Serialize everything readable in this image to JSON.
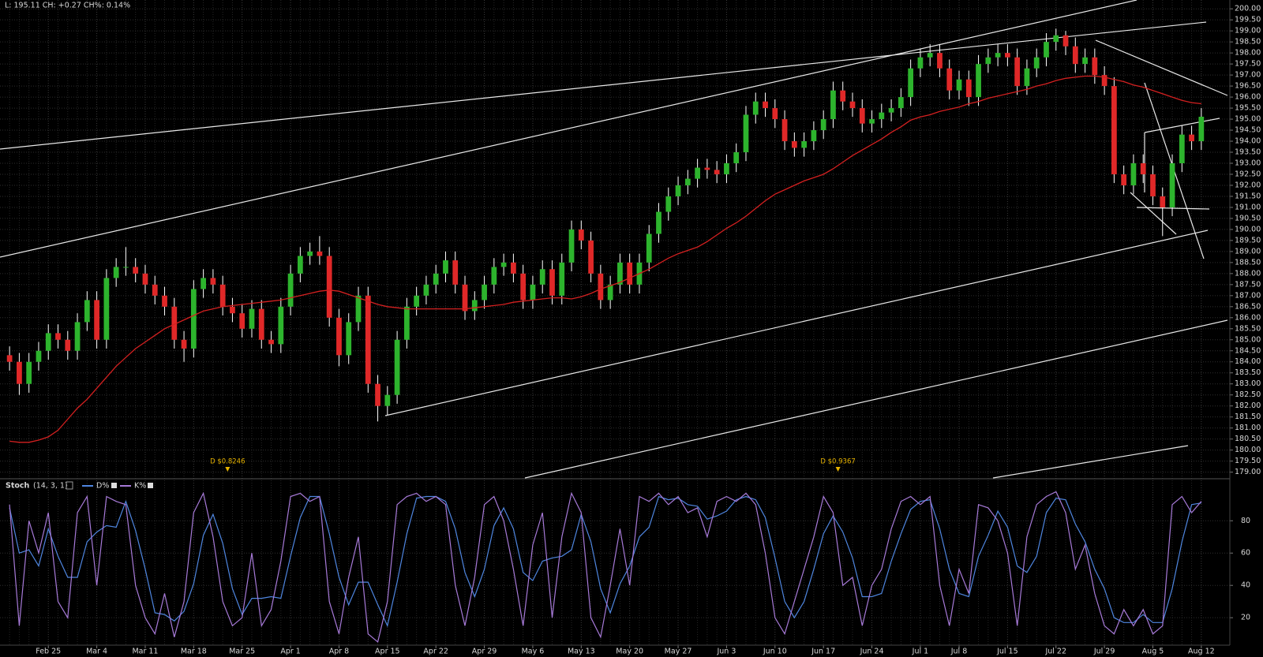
{
  "chart_data": [
    {
      "type": "candlestick",
      "status": "L: 195.11 CH: +0.27 CH%: 0.14%",
      "categories": [
        null,
        null,
        null,
        null,
        "Feb 25",
        null,
        null,
        null,
        null,
        "Mar 4",
        null,
        null,
        null,
        null,
        "Mar 11",
        null,
        null,
        null,
        null,
        "Mar 18",
        null,
        null,
        null,
        null,
        "Mar 25",
        null,
        null,
        null,
        null,
        "Apr 1",
        null,
        null,
        null,
        null,
        "Apr 8",
        null,
        null,
        null,
        null,
        "Apr 15",
        null,
        null,
        null,
        null,
        "Apr 22",
        null,
        null,
        null,
        null,
        "Apr 29",
        null,
        null,
        null,
        null,
        "May 6",
        null,
        null,
        null,
        null,
        "May 13",
        null,
        null,
        null,
        null,
        "May 20",
        null,
        null,
        null,
        null,
        "May 27",
        null,
        null,
        null,
        null,
        "Jun 3",
        null,
        null,
        null,
        null,
        "Jun 10",
        null,
        null,
        null,
        null,
        "Jun 17",
        null,
        null,
        null,
        null,
        "Jun 24",
        null,
        null,
        null,
        null,
        "Jul 1",
        null,
        null,
        null,
        "Jul 8",
        null,
        null,
        null,
        null,
        "Jul 15",
        null,
        null,
        null,
        null,
        "Jul 22",
        null,
        null,
        null,
        null,
        "Jul 29",
        null,
        null,
        null,
        null,
        "Aug 5",
        null,
        null,
        null,
        null,
        "Aug 12"
      ],
      "open": [
        184.3,
        184.0,
        183.0,
        184.0,
        184.5,
        185.3,
        185.0,
        184.5,
        185.8,
        186.8,
        185.0,
        187.8,
        188.3,
        188.3,
        188.0,
        187.5,
        187.0,
        186.5,
        185.0,
        184.6,
        187.3,
        187.8,
        187.5,
        186.5,
        186.2,
        185.5,
        186.4,
        185.0,
        184.8,
        186.5,
        188.0,
        188.8,
        189.0,
        188.8,
        186.0,
        184.3,
        185.8,
        187.0,
        183.0,
        182.0,
        182.5,
        185.0,
        186.5,
        187.0,
        187.5,
        188.0,
        188.6,
        187.5,
        186.3,
        186.8,
        187.5,
        188.3,
        188.5,
        188.0,
        186.8,
        187.5,
        188.2,
        187.0,
        188.5,
        190.0,
        189.5,
        188.0,
        186.8,
        187.5,
        188.5,
        187.5,
        188.5,
        189.8,
        190.8,
        191.5,
        192.0,
        192.3,
        192.8,
        192.7,
        192.5,
        193.0,
        193.5,
        195.2,
        195.8,
        195.5,
        195.0,
        194.0,
        193.7,
        194.0,
        194.5,
        195.0,
        196.3,
        195.8,
        195.5,
        194.8,
        195.0,
        195.3,
        195.5,
        196.0,
        197.3,
        197.8,
        198.0,
        197.3,
        196.3,
        196.8,
        196.0,
        197.5,
        197.8,
        198.0,
        197.8,
        196.5,
        197.3,
        197.8,
        198.5,
        198.8,
        198.3,
        197.5,
        197.8,
        197.0,
        196.5,
        192.5,
        192.0,
        193.0,
        192.5,
        191.5,
        191.0,
        193.0,
        194.3,
        194.0
      ],
      "high": [
        184.7,
        184.4,
        184.4,
        184.9,
        185.7,
        185.7,
        185.4,
        186.2,
        187.2,
        187.2,
        188.2,
        188.7,
        189.2,
        188.7,
        188.4,
        187.9,
        187.4,
        186.9,
        185.4,
        187.7,
        188.2,
        188.2,
        187.9,
        186.9,
        186.6,
        186.8,
        186.8,
        185.4,
        186.9,
        188.4,
        189.2,
        189.4,
        189.7,
        189.2,
        186.4,
        186.2,
        187.4,
        187.4,
        183.4,
        182.9,
        185.4,
        186.9,
        187.4,
        187.9,
        188.4,
        189.0,
        189.0,
        187.9,
        187.2,
        187.9,
        188.7,
        188.9,
        188.9,
        188.4,
        187.9,
        188.6,
        188.6,
        188.9,
        190.4,
        190.4,
        189.9,
        188.4,
        187.9,
        188.9,
        188.9,
        188.9,
        190.2,
        191.2,
        191.9,
        192.4,
        192.7,
        193.2,
        193.2,
        193.1,
        193.4,
        193.9,
        195.6,
        196.2,
        196.2,
        195.9,
        195.4,
        194.4,
        194.4,
        194.9,
        195.4,
        196.7,
        196.7,
        196.2,
        195.9,
        195.4,
        195.7,
        195.9,
        196.4,
        197.7,
        198.2,
        198.4,
        198.4,
        197.7,
        197.2,
        197.2,
        197.9,
        198.2,
        198.4,
        198.4,
        198.2,
        197.7,
        198.2,
        198.9,
        199.1,
        199.0,
        198.7,
        198.2,
        198.2,
        197.4,
        196.9,
        192.9,
        193.4,
        193.4,
        192.9,
        191.9,
        193.4,
        194.7,
        194.7,
        195.5
      ],
      "low": [
        183.6,
        182.5,
        182.6,
        183.6,
        184.1,
        184.6,
        184.1,
        184.1,
        185.4,
        184.6,
        184.6,
        187.4,
        187.9,
        187.6,
        187.1,
        186.6,
        186.1,
        184.6,
        184.0,
        184.2,
        186.9,
        187.1,
        186.1,
        185.8,
        185.1,
        185.1,
        184.6,
        184.4,
        184.4,
        186.1,
        187.6,
        188.4,
        188.4,
        185.6,
        183.8,
        183.9,
        185.4,
        182.6,
        181.3,
        181.6,
        182.1,
        184.6,
        186.1,
        186.6,
        187.1,
        187.6,
        187.1,
        185.9,
        185.9,
        186.4,
        187.1,
        187.9,
        187.6,
        186.4,
        186.4,
        187.1,
        186.6,
        186.6,
        188.1,
        189.1,
        187.6,
        186.4,
        186.4,
        187.1,
        187.1,
        187.1,
        188.1,
        189.4,
        190.4,
        191.1,
        191.6,
        191.9,
        192.3,
        192.1,
        192.1,
        192.6,
        193.1,
        194.8,
        195.1,
        194.6,
        193.6,
        193.3,
        193.3,
        193.6,
        194.1,
        194.6,
        195.4,
        195.1,
        194.4,
        194.4,
        194.6,
        194.9,
        195.1,
        195.6,
        196.9,
        197.4,
        196.9,
        195.9,
        195.9,
        195.6,
        195.6,
        197.1,
        197.4,
        197.4,
        196.1,
        196.1,
        196.9,
        197.4,
        198.1,
        197.9,
        197.1,
        197.1,
        196.6,
        196.1,
        192.1,
        191.6,
        191.6,
        192.1,
        191.1,
        189.7,
        190.6,
        192.6,
        193.6,
        193.6
      ],
      "close": [
        184.0,
        183.0,
        184.0,
        184.5,
        185.3,
        185.0,
        184.5,
        185.8,
        186.8,
        185.0,
        187.8,
        188.3,
        188.3,
        188.0,
        187.5,
        187.0,
        186.5,
        185.0,
        184.6,
        187.3,
        187.8,
        187.5,
        186.5,
        186.2,
        185.5,
        186.4,
        185.0,
        184.8,
        186.5,
        188.0,
        188.8,
        189.0,
        188.8,
        186.0,
        184.3,
        185.8,
        187.0,
        183.0,
        182.0,
        182.5,
        185.0,
        186.5,
        187.0,
        187.5,
        188.0,
        188.6,
        187.5,
        186.3,
        186.8,
        187.5,
        188.3,
        188.5,
        188.0,
        186.8,
        187.5,
        188.2,
        187.0,
        188.5,
        190.0,
        189.5,
        188.0,
        186.8,
        187.5,
        188.5,
        187.5,
        188.5,
        189.8,
        190.8,
        191.5,
        192.0,
        192.3,
        192.8,
        192.7,
        192.5,
        193.0,
        193.5,
        195.2,
        195.8,
        195.5,
        195.0,
        194.0,
        193.7,
        194.0,
        194.5,
        195.0,
        196.3,
        195.8,
        195.5,
        194.8,
        195.0,
        195.3,
        195.5,
        196.0,
        197.3,
        197.8,
        198.0,
        197.3,
        196.3,
        196.8,
        196.0,
        197.5,
        197.8,
        198.0,
        197.8,
        196.5,
        197.3,
        197.8,
        198.5,
        198.8,
        198.3,
        197.5,
        197.8,
        197.0,
        196.5,
        192.5,
        192.0,
        193.0,
        192.5,
        191.5,
        191.0,
        193.0,
        194.3,
        194.0,
        195.11
      ],
      "up_color": "#2db42d",
      "down_color": "#e02828",
      "wick_color": "#ffffff",
      "overlay": {
        "color": "#d42020",
        "values": [
          180.4,
          180.35,
          180.35,
          180.45,
          180.6,
          180.9,
          181.4,
          181.9,
          182.3,
          182.8,
          183.3,
          183.8,
          184.2,
          184.6,
          184.9,
          185.2,
          185.5,
          185.7,
          185.9,
          186.1,
          186.3,
          186.4,
          186.5,
          186.55,
          186.6,
          186.65,
          186.7,
          186.75,
          186.8,
          186.9,
          187.0,
          187.1,
          187.2,
          187.25,
          187.2,
          187.05,
          186.9,
          186.75,
          186.6,
          186.5,
          186.45,
          186.4,
          186.4,
          186.4,
          186.4,
          186.4,
          186.4,
          186.4,
          186.45,
          186.5,
          186.55,
          186.6,
          186.7,
          186.75,
          186.8,
          186.85,
          186.9,
          186.9,
          186.85,
          186.95,
          187.1,
          187.3,
          187.45,
          187.6,
          187.8,
          188.0,
          188.2,
          188.45,
          188.7,
          188.9,
          189.05,
          189.2,
          189.45,
          189.75,
          190.05,
          190.3,
          190.6,
          190.95,
          191.3,
          191.6,
          191.8,
          192.0,
          192.2,
          192.35,
          192.5,
          192.75,
          193.05,
          193.35,
          193.6,
          193.85,
          194.1,
          194.4,
          194.65,
          194.95,
          195.1,
          195.2,
          195.35,
          195.45,
          195.55,
          195.7,
          195.8,
          195.95,
          196.05,
          196.15,
          196.25,
          196.35,
          196.5,
          196.6,
          196.75,
          196.85,
          196.9,
          196.95,
          196.95,
          196.9,
          196.8,
          196.7,
          196.55,
          196.45,
          196.3,
          196.15,
          196.0,
          195.85,
          195.75,
          195.7
        ]
      },
      "annotations": [
        "D $0.8246",
        "D $0.9367"
      ],
      "annotation_color": "#e8b400",
      "ylim": [
        178.7,
        200.4
      ],
      "yticks": [
        {
          "value": 179,
          "label": "179.00"
        },
        {
          "value": 179.5,
          "label": "179.50"
        },
        {
          "value": 180,
          "label": "180.00"
        },
        {
          "value": 180.5,
          "label": "180.50"
        },
        {
          "value": 181,
          "label": "181.00"
        },
        {
          "value": 181.5,
          "label": "181.50"
        },
        {
          "value": 182,
          "label": "182.00"
        },
        {
          "value": 182.5,
          "label": "182.50"
        },
        {
          "value": 183,
          "label": "183.00"
        },
        {
          "value": 183.5,
          "label": "183.50"
        },
        {
          "value": 184,
          "label": "184.00"
        },
        {
          "value": 184.5,
          "label": "184.50"
        },
        {
          "value": 185,
          "label": "185.00"
        },
        {
          "value": 185.5,
          "label": "185.50"
        },
        {
          "value": 186,
          "label": "186.00"
        },
        {
          "value": 186.5,
          "label": "186.50"
        },
        {
          "value": 187,
          "label": "187.00"
        },
        {
          "value": 187.5,
          "label": "187.50"
        },
        {
          "value": 188,
          "label": "188.00"
        },
        {
          "value": 188.5,
          "label": "188.50"
        },
        {
          "value": 189,
          "label": "189.00"
        },
        {
          "value": 189.5,
          "label": "189.50"
        },
        {
          "value": 190,
          "label": "190.00"
        },
        {
          "value": 190.5,
          "label": "190.50"
        },
        {
          "value": 191,
          "label": "191.00"
        },
        {
          "value": 191.5,
          "label": "191.50"
        },
        {
          "value": 192,
          "label": "192.00"
        },
        {
          "value": 192.5,
          "label": "192.50"
        },
        {
          "value": 193,
          "label": "193.00"
        },
        {
          "value": 193.5,
          "label": "193.50"
        },
        {
          "value": 194,
          "label": "194.00"
        },
        {
          "value": 194.5,
          "label": "194.50"
        },
        {
          "value": 195,
          "label": "195.00"
        },
        {
          "value": 195.5,
          "label": "195.50"
        },
        {
          "value": 196,
          "label": "196.00"
        },
        {
          "value": 196.5,
          "label": "196.50"
        },
        {
          "value": 197,
          "label": "197.00"
        },
        {
          "value": 197.5,
          "label": "197.50"
        },
        {
          "value": 198,
          "label": "198.00"
        },
        {
          "value": 198.5,
          "label": "198.50"
        },
        {
          "value": 199,
          "label": "199.00"
        },
        {
          "value": 199.5,
          "label": "199.50"
        },
        {
          "value": 200,
          "label": "200.00"
        }
      ],
      "grid": true
    },
    {
      "type": "line",
      "title": "Stoch",
      "subtitle": "(14, 3, 1)",
      "series": [
        {
          "name": "D%",
          "color": "#4f86e0",
          "values": [
            88,
            60,
            62,
            52,
            75,
            58,
            45,
            45,
            67,
            73,
            77,
            76,
            92,
            74,
            50,
            23,
            22,
            18,
            24,
            41,
            71,
            84,
            66,
            38,
            22,
            32,
            32,
            33,
            32,
            58,
            82,
            95,
            95,
            72,
            45,
            28,
            42,
            42,
            28,
            15,
            42,
            72,
            94,
            95,
            95,
            92,
            75,
            48,
            33,
            50,
            77,
            88,
            75,
            48,
            43,
            55,
            57,
            58,
            62,
            84,
            67,
            38,
            23,
            41,
            52,
            70,
            76,
            95,
            93,
            94,
            90,
            89,
            81,
            83,
            86,
            93,
            95,
            93,
            82,
            57,
            30,
            20,
            30,
            50,
            72,
            83,
            73,
            57,
            33,
            33,
            35,
            55,
            72,
            87,
            92,
            93,
            75,
            50,
            35,
            33,
            58,
            71,
            86,
            76,
            52,
            48,
            58,
            85,
            94,
            93,
            78,
            67,
            50,
            38,
            20,
            17,
            17,
            22,
            17,
            17,
            38,
            67,
            90,
            91
          ]
        },
        {
          "name": "K%",
          "color": "#a77ad8",
          "values": [
            90,
            15,
            80,
            60,
            85,
            30,
            20,
            85,
            95,
            40,
            95,
            92,
            90,
            40,
            20,
            10,
            35,
            8,
            30,
            85,
            97,
            70,
            30,
            15,
            20,
            60,
            15,
            25,
            55,
            95,
            97,
            92,
            95,
            30,
            10,
            45,
            70,
            10,
            5,
            30,
            90,
            95,
            97,
            92,
            95,
            90,
            40,
            15,
            45,
            90,
            95,
            80,
            50,
            15,
            65,
            85,
            20,
            70,
            97,
            85,
            20,
            8,
            40,
            75,
            40,
            95,
            92,
            97,
            90,
            95,
            85,
            88,
            70,
            92,
            95,
            92,
            97,
            90,
            60,
            20,
            10,
            30,
            50,
            70,
            95,
            85,
            40,
            45,
            15,
            40,
            50,
            75,
            92,
            95,
            90,
            95,
            40,
            15,
            50,
            35,
            90,
            88,
            80,
            60,
            15,
            70,
            90,
            95,
            98,
            85,
            50,
            65,
            35,
            15,
            10,
            25,
            15,
            25,
            10,
            15,
            90,
            95,
            85,
            92
          ]
        }
      ],
      "ylim": [
        3,
        106
      ],
      "yticks": [
        20,
        40,
        60,
        80
      ],
      "grid": true
    }
  ]
}
